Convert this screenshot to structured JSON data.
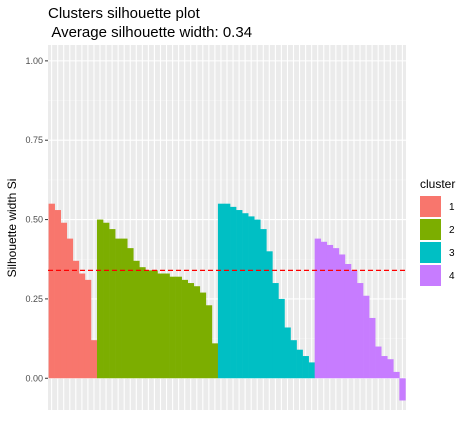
{
  "chart_data": {
    "type": "bar",
    "title": "Clusters silhouette plot",
    "subtitle": " Average silhouette width: 0.34",
    "xlabel": "",
    "ylabel": "Silhouette width Si",
    "ylim": [
      -0.1,
      1.05
    ],
    "y_ticks": [
      "1.00",
      "0.75",
      "0.50",
      "0.25",
      "0.00"
    ],
    "y_tick_values": [
      1.0,
      0.75,
      0.5,
      0.25,
      0.0
    ],
    "average_line": 0.34,
    "average_line_color": "#ff0000",
    "grid": true,
    "legend": {
      "title": "cluster",
      "placement": "right",
      "entries": [
        {
          "label": "1",
          "color": "#f8766d"
        },
        {
          "label": "2",
          "color": "#7cae00"
        },
        {
          "label": "3",
          "color": "#00bfc4"
        },
        {
          "label": "4",
          "color": "#c77cff"
        }
      ]
    },
    "series": [
      {
        "cluster": "1",
        "color": "#f8766d",
        "values": [
          0.55,
          0.53,
          0.49,
          0.44,
          0.37,
          0.33,
          0.31,
          0.12
        ]
      },
      {
        "cluster": "2",
        "color": "#7cae00",
        "values": [
          0.5,
          0.49,
          0.47,
          0.44,
          0.44,
          0.41,
          0.37,
          0.35,
          0.34,
          0.34,
          0.33,
          0.33,
          0.32,
          0.32,
          0.31,
          0.3,
          0.29,
          0.27,
          0.23,
          0.11
        ]
      },
      {
        "cluster": "3",
        "color": "#00bfc4",
        "values": [
          0.55,
          0.55,
          0.54,
          0.53,
          0.52,
          0.51,
          0.5,
          0.47,
          0.4,
          0.3,
          0.25,
          0.16,
          0.12,
          0.09,
          0.07,
          0.05
        ]
      },
      {
        "cluster": "4",
        "color": "#c77cff",
        "values": [
          0.44,
          0.43,
          0.42,
          0.41,
          0.39,
          0.36,
          0.34,
          0.3,
          0.26,
          0.19,
          0.1,
          0.07,
          0.06,
          0.02,
          -0.07
        ]
      }
    ]
  }
}
